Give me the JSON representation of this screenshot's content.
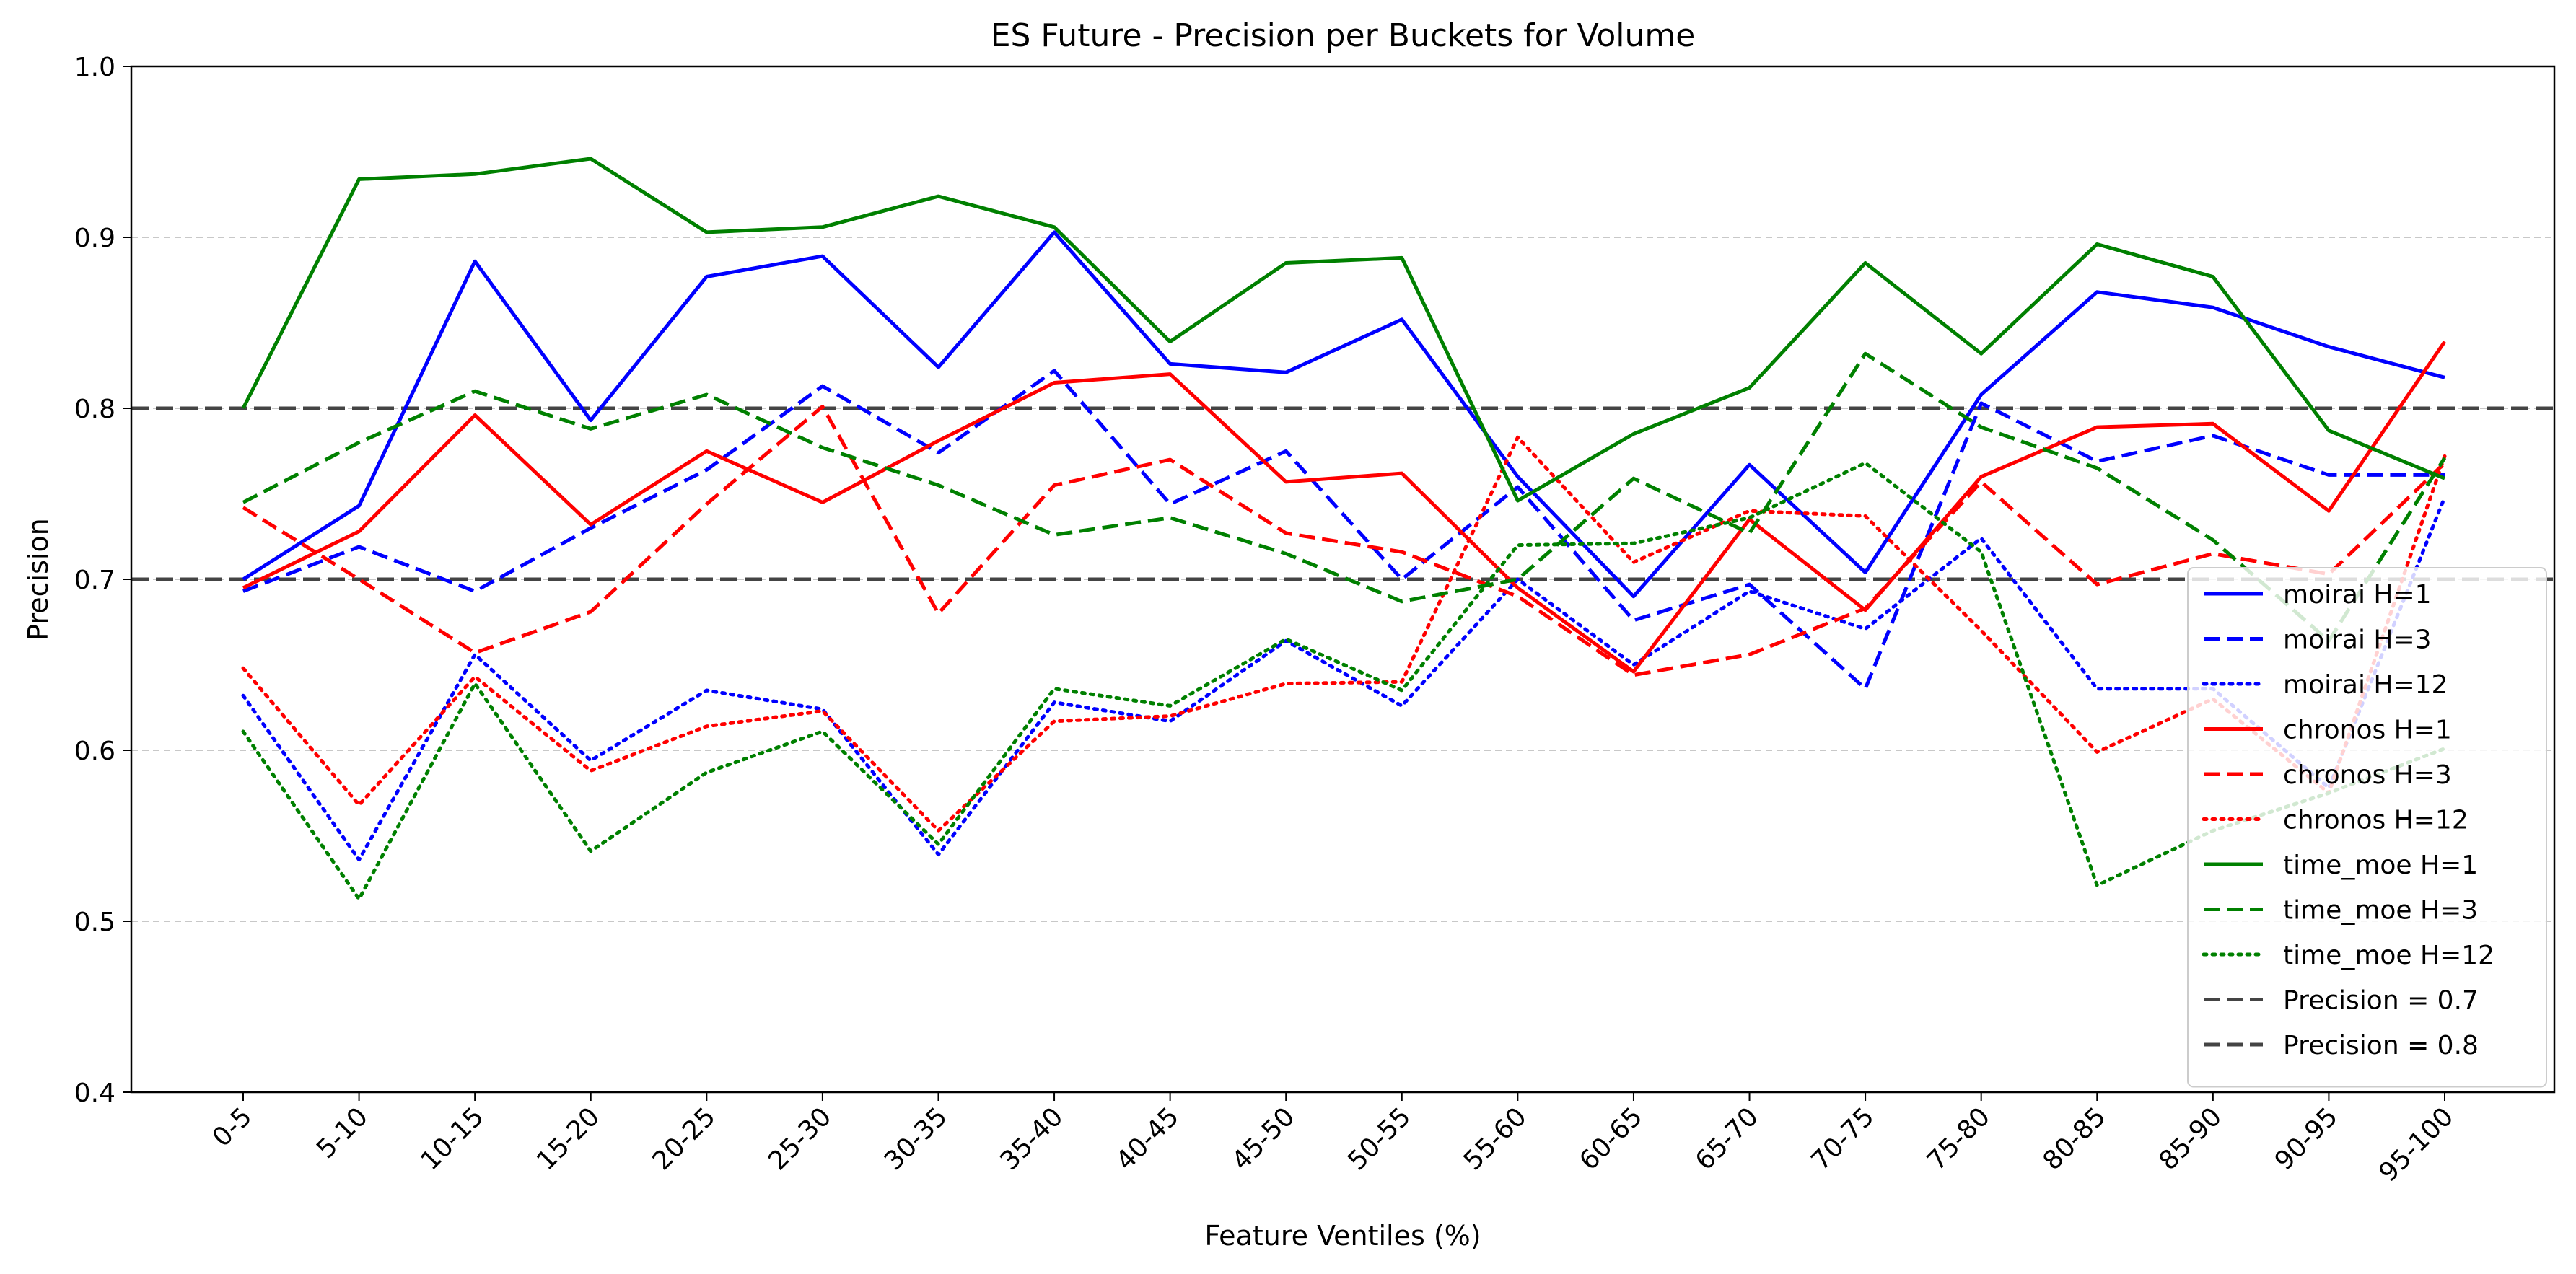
{
  "chart_data": {
    "type": "line",
    "title": "ES Future - Precision per Buckets for Volume",
    "xlabel": "Feature Ventiles (%)",
    "ylabel": "Precision",
    "ylim": [
      0.4,
      1.0
    ],
    "yticks": [
      "0.4",
      "0.5",
      "0.6",
      "0.7",
      "0.8",
      "0.9",
      "1.0"
    ],
    "grid": "horizontal dashed",
    "legend_position": "lower-right",
    "categories": [
      "0-5",
      "5-10",
      "10-15",
      "15-20",
      "20-25",
      "25-30",
      "30-35",
      "35-40",
      "40-45",
      "45-50",
      "50-55",
      "55-60",
      "60-65",
      "65-70",
      "70-75",
      "75-80",
      "80-85",
      "85-90",
      "90-95",
      "95-100"
    ],
    "series": [
      {
        "name": "moirai H=1",
        "color": "#0000ff",
        "style": "solid",
        "values": [
          0.7,
          0.743,
          0.886,
          0.793,
          0.877,
          0.889,
          0.824,
          0.903,
          0.826,
          0.821,
          0.852,
          0.76,
          0.69,
          0.767,
          0.704,
          0.808,
          0.868,
          0.859,
          0.836,
          0.818
        ]
      },
      {
        "name": "moirai H=3",
        "color": "#0000ff",
        "style": "dashed",
        "values": [
          0.693,
          0.719,
          0.693,
          0.73,
          0.764,
          0.813,
          0.774,
          0.822,
          0.744,
          0.775,
          0.7,
          0.754,
          0.676,
          0.697,
          0.636,
          0.803,
          0.769,
          0.784,
          0.761,
          0.761
        ]
      },
      {
        "name": "moirai H=12",
        "color": "#0000ff",
        "style": "dotted",
        "values": [
          0.632,
          0.536,
          0.656,
          0.594,
          0.635,
          0.624,
          0.539,
          0.628,
          0.617,
          0.664,
          0.626,
          0.7,
          0.65,
          0.693,
          0.671,
          0.724,
          0.636,
          0.636,
          0.578,
          0.748
        ]
      },
      {
        "name": "chronos H=1",
        "color": "#ff0000",
        "style": "solid",
        "values": [
          0.695,
          0.728,
          0.796,
          0.732,
          0.775,
          0.745,
          0.781,
          0.815,
          0.82,
          0.757,
          0.762,
          0.695,
          0.646,
          0.735,
          0.682,
          0.76,
          0.789,
          0.791,
          0.74,
          0.839
        ]
      },
      {
        "name": "chronos H=3",
        "color": "#ff0000",
        "style": "dashed",
        "values": [
          0.742,
          0.7,
          0.657,
          0.681,
          0.744,
          0.801,
          0.68,
          0.755,
          0.77,
          0.727,
          0.716,
          0.69,
          0.644,
          0.656,
          0.683,
          0.757,
          0.697,
          0.715,
          0.703,
          0.768
        ]
      },
      {
        "name": "chronos H=12",
        "color": "#ff0000",
        "style": "dotted",
        "values": [
          0.648,
          0.568,
          0.643,
          0.588,
          0.614,
          0.623,
          0.553,
          0.617,
          0.62,
          0.639,
          0.64,
          0.783,
          0.71,
          0.74,
          0.737,
          0.67,
          0.599,
          0.63,
          0.575,
          0.772
        ]
      },
      {
        "name": "time_moe H=1",
        "color": "#008000",
        "style": "solid",
        "values": [
          0.8,
          0.934,
          0.937,
          0.946,
          0.903,
          0.906,
          0.924,
          0.906,
          0.839,
          0.885,
          0.888,
          0.746,
          0.785,
          0.812,
          0.885,
          0.832,
          0.896,
          0.877,
          0.787,
          0.759
        ]
      },
      {
        "name": "time_moe H=3",
        "color": "#008000",
        "style": "dashed",
        "values": [
          0.745,
          0.78,
          0.81,
          0.788,
          0.808,
          0.777,
          0.755,
          0.726,
          0.736,
          0.715,
          0.687,
          0.7,
          0.759,
          0.727,
          0.832,
          0.789,
          0.765,
          0.723,
          0.664,
          0.771
        ]
      },
      {
        "name": "time_moe H=12",
        "color": "#008000",
        "style": "dotted",
        "values": [
          0.611,
          0.513,
          0.639,
          0.541,
          0.587,
          0.611,
          0.545,
          0.636,
          0.626,
          0.665,
          0.635,
          0.72,
          0.721,
          0.736,
          0.768,
          0.716,
          0.521,
          0.553,
          0.575,
          0.601
        ]
      }
    ],
    "reference_lines": [
      {
        "name": "Precision = 0.7",
        "value": 0.7,
        "color": "#444444",
        "style": "dashed"
      },
      {
        "name": "Precision = 0.8",
        "value": 0.8,
        "color": "#444444",
        "style": "dashed"
      }
    ]
  }
}
